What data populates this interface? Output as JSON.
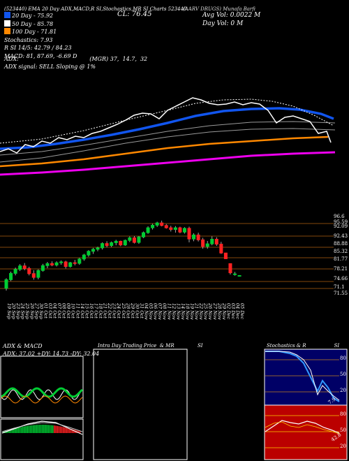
{
  "header": {
    "top_strip": "(523440) EMA 20 Day ADX,MACD,R SI,Stochastics,MR SI Charts 523440",
    "company": "(AARV DRUGS) Munafa Barfi",
    "cl": "CL: 76.45",
    "avg_vol": "Avg Vol: 0.0022  M",
    "day_vol": "Day Vol: 0   M",
    "legend": [
      {
        "text": "20  Day  - 75.92",
        "color": "#1155ee"
      },
      {
        "text": "50  Day  - 85.78",
        "color": "#ffffff"
      },
      {
        "text": "100  Day  - 71.81",
        "color": "#ff8800"
      },
      {
        "text": "Stochastics: 7.93",
        "color": null
      },
      {
        "text": "R          SI 14/5: 42.79 / 84.23",
        "color": null
      },
      {
        "text": "MACD: 81, 87.69, -6.69 D",
        "color": null
      }
    ],
    "adx_line": "ADX:                                        (MGR) 37,  14.7,  32",
    "adx_signal": "ADX  signal: SELL  Sloping @ 1%"
  },
  "colors": {
    "ema20": "#1155ee",
    "ema50": "#ffffff",
    "ema100": "#ff8800",
    "ema200": "#ee00ee",
    "up": "#00cc33",
    "down": "#ff2222",
    "grid": "#b06010"
  },
  "price_levels": [
    "96.6",
    "95.59",
    "92.09",
    "92.43",
    "88.88",
    "85.32",
    "81.77",
    "78.21",
    "74.66",
    "71.1",
    "71.55"
  ],
  "dates": [
    "19 Sep",
    "20 Sep",
    "23 Sep",
    "24 Sep",
    "25 Sep",
    "26 Sep",
    "27 Sep",
    "30 Sep",
    "01 Oct",
    "03 Oct",
    "04 Oct",
    "07 Oct",
    "08 Oct",
    "09 Oct",
    "10 Oct",
    "11 Oct",
    "14 Oct",
    "15 Oct",
    "16 Oct",
    "17 Oct",
    "18 Oct",
    "21 Oct",
    "22 Oct",
    "23 Oct",
    "24 Oct",
    "25 Oct",
    "28 Oct",
    "29 Oct",
    "30 Oct",
    "31 Oct",
    "04 Nov",
    "05 Nov",
    "06 Nov",
    "07 Nov",
    "08 Nov",
    "11 Nov",
    "12 Nov",
    "13 Nov",
    "14 Nov",
    "18 Nov",
    "19 Nov",
    "21 Nov",
    "22 Nov",
    "25 Nov",
    "26 Nov",
    "27 Nov",
    "28 Nov",
    "29 Nov",
    "02 Dec",
    "03 Dec",
    "04 Dec",
    "05 Dec"
  ],
  "chart_data": {
    "type": "candlestick",
    "x": [
      "19 Sep",
      "20 Sep",
      "23 Sep",
      "24 Sep",
      "25 Sep",
      "26 Sep",
      "27 Sep",
      "30 Sep",
      "01 Oct",
      "03 Oct",
      "04 Oct",
      "07 Oct",
      "08 Oct",
      "09 Oct",
      "10 Oct",
      "11 Oct",
      "14 Oct",
      "15 Oct",
      "16 Oct",
      "17 Oct",
      "18 Oct",
      "21 Oct",
      "22 Oct",
      "23 Oct",
      "24 Oct",
      "25 Oct",
      "28 Oct",
      "29 Oct",
      "30 Oct",
      "31 Oct",
      "04 Nov",
      "05 Nov",
      "06 Nov",
      "07 Nov",
      "08 Nov",
      "11 Nov",
      "12 Nov",
      "13 Nov",
      "14 Nov",
      "18 Nov",
      "19 Nov",
      "21 Nov",
      "22 Nov",
      "25 Nov",
      "26 Nov",
      "27 Nov",
      "28 Nov",
      "29 Nov",
      "02 Dec",
      "03 Dec",
      "04 Dec",
      "05 Dec"
    ],
    "candles": [
      [
        72.0,
        75.5,
        71.2,
        75.0
      ],
      [
        75.0,
        77.8,
        74.5,
        77.2
      ],
      [
        77.2,
        79.2,
        76.5,
        78.6
      ],
      [
        78.6,
        80.4,
        78.0,
        79.8
      ],
      [
        79.8,
        80.8,
        78.3,
        78.9
      ],
      [
        78.9,
        79.5,
        76.5,
        77.1
      ],
      [
        77.1,
        78.3,
        75.0,
        75.8
      ],
      [
        75.8,
        78.6,
        75.1,
        78.2
      ],
      [
        78.2,
        80.5,
        77.8,
        79.9
      ],
      [
        79.9,
        81.2,
        79.0,
        80.6
      ],
      [
        80.6,
        81.4,
        79.7,
        80.1
      ],
      [
        80.1,
        81.4,
        79.6,
        80.9
      ],
      [
        80.9,
        81.7,
        80.2,
        81.2
      ],
      [
        81.2,
        81.6,
        78.9,
        79.6
      ],
      [
        79.6,
        81.2,
        79.2,
        80.9
      ],
      [
        80.9,
        81.9,
        80.0,
        80.7
      ],
      [
        80.7,
        82.6,
        80.2,
        82.2
      ],
      [
        82.2,
        84.0,
        81.6,
        83.6
      ],
      [
        83.6,
        85.3,
        83.0,
        84.9
      ],
      [
        84.9,
        86.1,
        84.0,
        85.6
      ],
      [
        85.6,
        86.5,
        84.9,
        86.1
      ],
      [
        86.1,
        88.0,
        85.5,
        87.6
      ],
      [
        87.6,
        88.4,
        86.3,
        86.9
      ],
      [
        86.9,
        88.3,
        86.4,
        87.9
      ],
      [
        87.9,
        88.9,
        87.0,
        88.4
      ],
      [
        88.4,
        88.6,
        86.7,
        87.1
      ],
      [
        87.1,
        89.0,
        86.8,
        88.7
      ],
      [
        88.7,
        90.1,
        88.1,
        89.6
      ],
      [
        89.6,
        90.2,
        87.6,
        88.0
      ],
      [
        88.0,
        90.2,
        87.5,
        89.9
      ],
      [
        89.9,
        91.8,
        89.5,
        91.4
      ],
      [
        91.4,
        93.6,
        91.0,
        93.1
      ],
      [
        93.1,
        94.5,
        92.5,
        94.0
      ],
      [
        94.0,
        95.2,
        93.4,
        94.8
      ],
      [
        94.8,
        95.6,
        93.6,
        93.9
      ],
      [
        93.9,
        94.4,
        92.8,
        93.1
      ],
      [
        93.1,
        93.8,
        91.8,
        92.5
      ],
      [
        92.5,
        93.7,
        91.4,
        93.1
      ],
      [
        93.1,
        93.5,
        91.2,
        91.6
      ],
      [
        91.6,
        93.3,
        91.1,
        92.9
      ],
      [
        92.9,
        93.5,
        88.0,
        89.2
      ],
      [
        89.2,
        91.2,
        88.4,
        90.6
      ],
      [
        90.6,
        91.4,
        88.3,
        88.9
      ],
      [
        88.9,
        89.6,
        85.8,
        86.6
      ],
      [
        86.6,
        88.5,
        85.8,
        87.5
      ],
      [
        87.5,
        90.1,
        87.0,
        89.1
      ],
      [
        89.1,
        89.8,
        86.8,
        87.4
      ],
      [
        87.4,
        88.2,
        84.0,
        84.3
      ],
      [
        84.3,
        84.3,
        82.3,
        82.3
      ],
      [
        80.6,
        80.6,
        76.8,
        77.4
      ],
      [
        77.0,
        77.7,
        76.4,
        77.0
      ],
      [
        76.45,
        76.45,
        76.45,
        76.45
      ]
    ],
    "ylim": [
      69,
      98
    ],
    "ema_series_names": [
      "20 Day",
      "50 Day",
      "100 Day"
    ],
    "adx": {
      "adx": 37.02,
      "plus_di": 14.73,
      "minus_di": 32.04
    },
    "stochastics": 7.93,
    "rsi": 42.79,
    "mrsi": 84.23
  },
  "panels": {
    "adx_title": "ADX  & MACD",
    "adx_values": "ADX: 37.02  +DY: 14.73  -DY: 32.04",
    "intraday_title": "Intra Day Trading Price  & MR               SI",
    "stoch_title": "Stochastics & R                  SI",
    "stoch_ticks": [
      "80",
      "50",
      "20"
    ],
    "rsi_ticks": [
      "80",
      "50",
      "20"
    ],
    "stoch_value": "7.9",
    "rsi_value": "42.8"
  }
}
